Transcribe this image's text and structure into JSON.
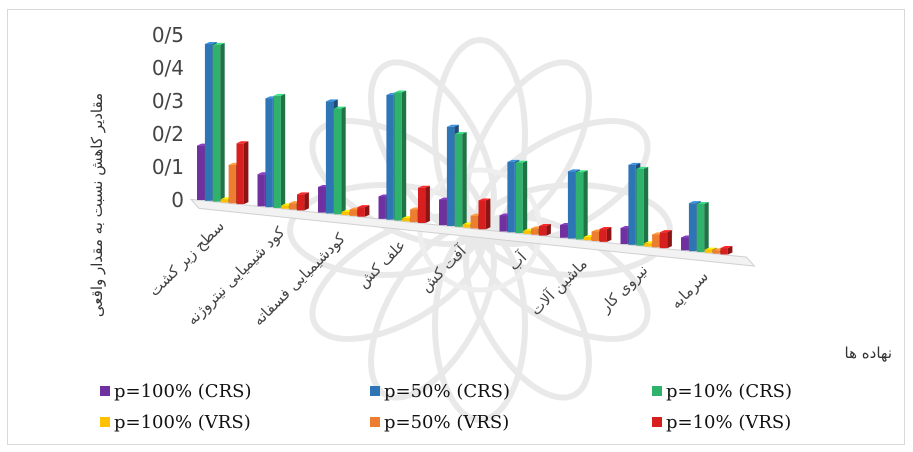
{
  "chart_data": {
    "type": "bar",
    "ylabel": "مقادیر کاهش نسبت به مقدار واقعی",
    "xlabel": "نهاده ها",
    "ylim": [
      0,
      0.5
    ],
    "yticks": [
      "0",
      "0/1",
      "0/2",
      "0/3",
      "0/4",
      "0/5"
    ],
    "categories": [
      "سطح زیر کشت",
      "کود شیمیایی نیتروژنه",
      "کودشیمیایی فسفاته",
      "علف کش",
      "آفت کش",
      "آب",
      "ماشین آلات",
      "نیروی کار",
      "سرمایه"
    ],
    "legend_position": "bottom",
    "series": [
      {
        "name": "p=100% (CRS)",
        "color": "#7030a0",
        "values": [
          0.17,
          0.1,
          0.08,
          0.07,
          0.08,
          0.05,
          0.04,
          0.05,
          0.04
        ]
      },
      {
        "name": "p=50% (CRS)",
        "color": "#2e75b6",
        "values": [
          0.49,
          0.34,
          0.35,
          0.39,
          0.31,
          0.22,
          0.21,
          0.25,
          0.15
        ]
      },
      {
        "name": "p=10% (CRS)",
        "color": "#2fb26b",
        "values": [
          0.49,
          0.35,
          0.33,
          0.4,
          0.29,
          0.22,
          0.21,
          0.24,
          0.15
        ]
      },
      {
        "name": "p=100% (VRS)",
        "color": "#ffc000",
        "values": [
          0.01,
          0.01,
          0.01,
          0.01,
          0.01,
          0.01,
          0.01,
          0.01,
          0.01
        ]
      },
      {
        "name": "p=50% (VRS)",
        "color": "#ed7d31",
        "values": [
          0.12,
          0.02,
          0.02,
          0.04,
          0.04,
          0.02,
          0.03,
          0.04,
          0.01
        ]
      },
      {
        "name": "p=10% (VRS)",
        "color": "#d71f1f",
        "values": [
          0.19,
          0.05,
          0.03,
          0.11,
          0.09,
          0.03,
          0.04,
          0.05,
          0.02
        ]
      }
    ]
  }
}
